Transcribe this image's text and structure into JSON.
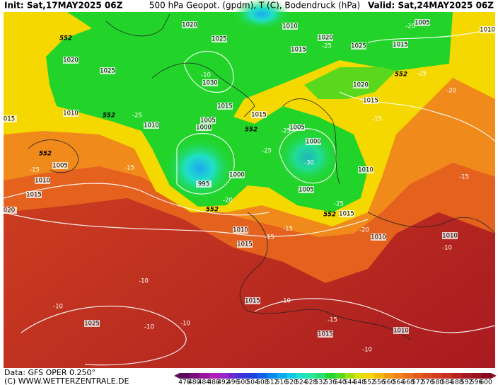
{
  "header": {
    "init": "Init: Sat,17MAY2025 06Z",
    "title": "500 hPa Geopot. (gpdm), T (C), Bodendruck (hPa)",
    "valid": "Valid: Sat,24MAY2025 06Z"
  },
  "map": {
    "isobars": [
      "1020",
      "1010",
      "1005",
      "1020",
      "1025",
      "1015",
      "1015",
      "1025",
      "1020",
      "1025",
      "1030",
      "1020",
      "1015",
      "1010",
      "1005",
      "1015",
      "1010",
      "1000",
      "1005",
      "1000",
      "1000",
      "995",
      "1010",
      "1005",
      "1015",
      "1010",
      "1015",
      "1010",
      "1010",
      "1015",
      "1025",
      "1015",
      "1010",
      "1015",
      "1010",
      "1005",
      "015",
      "020",
      "1010",
      "1015"
    ],
    "heights": [
      "552",
      "552",
      "552",
      "552",
      "552",
      "552",
      "552"
    ],
    "temperatures": [
      "-10",
      "-25",
      "-20",
      "-25",
      "-20",
      "-25",
      "-25",
      "-25",
      "-30",
      "-20",
      "-25",
      "-15",
      "-15",
      "-15",
      "-15",
      "-15",
      "-15",
      "-20",
      "-10",
      "-10",
      "-10",
      "-10",
      "-10",
      "-10",
      "-15",
      "-10"
    ]
  },
  "colorbar": {
    "ticks": [
      476,
      480,
      484,
      488,
      492,
      496,
      500,
      504,
      508,
      512,
      516,
      520,
      524,
      528,
      532,
      536,
      540,
      544,
      548,
      552,
      556,
      560,
      564,
      568,
      572,
      576,
      580,
      584,
      588,
      592,
      596,
      600
    ],
    "colors": [
      "#5a0a5a",
      "#7a0f7a",
      "#96169a",
      "#b01eb5",
      "#9a26c8",
      "#6a2ad0",
      "#3a36d8",
      "#2040e0",
      "#1060e8",
      "#0a86f0",
      "#0aaaf0",
      "#10c8e8",
      "#1ee0c8",
      "#28e8a0",
      "#28e070",
      "#20d830",
      "#50dc20",
      "#a0e010",
      "#e0e000",
      "#f5d800",
      "#f8b800",
      "#f59a10",
      "#f08218",
      "#ea6e1c",
      "#e45a1e",
      "#dc4a20",
      "#d43c20",
      "#c83020",
      "#b82420",
      "#a81a20",
      "#981220",
      "#880a20"
    ]
  },
  "footer": {
    "data": "Data: GFS OPER 0.250°",
    "site": "(C) WWW.WETTERZENTRALE.DE"
  }
}
